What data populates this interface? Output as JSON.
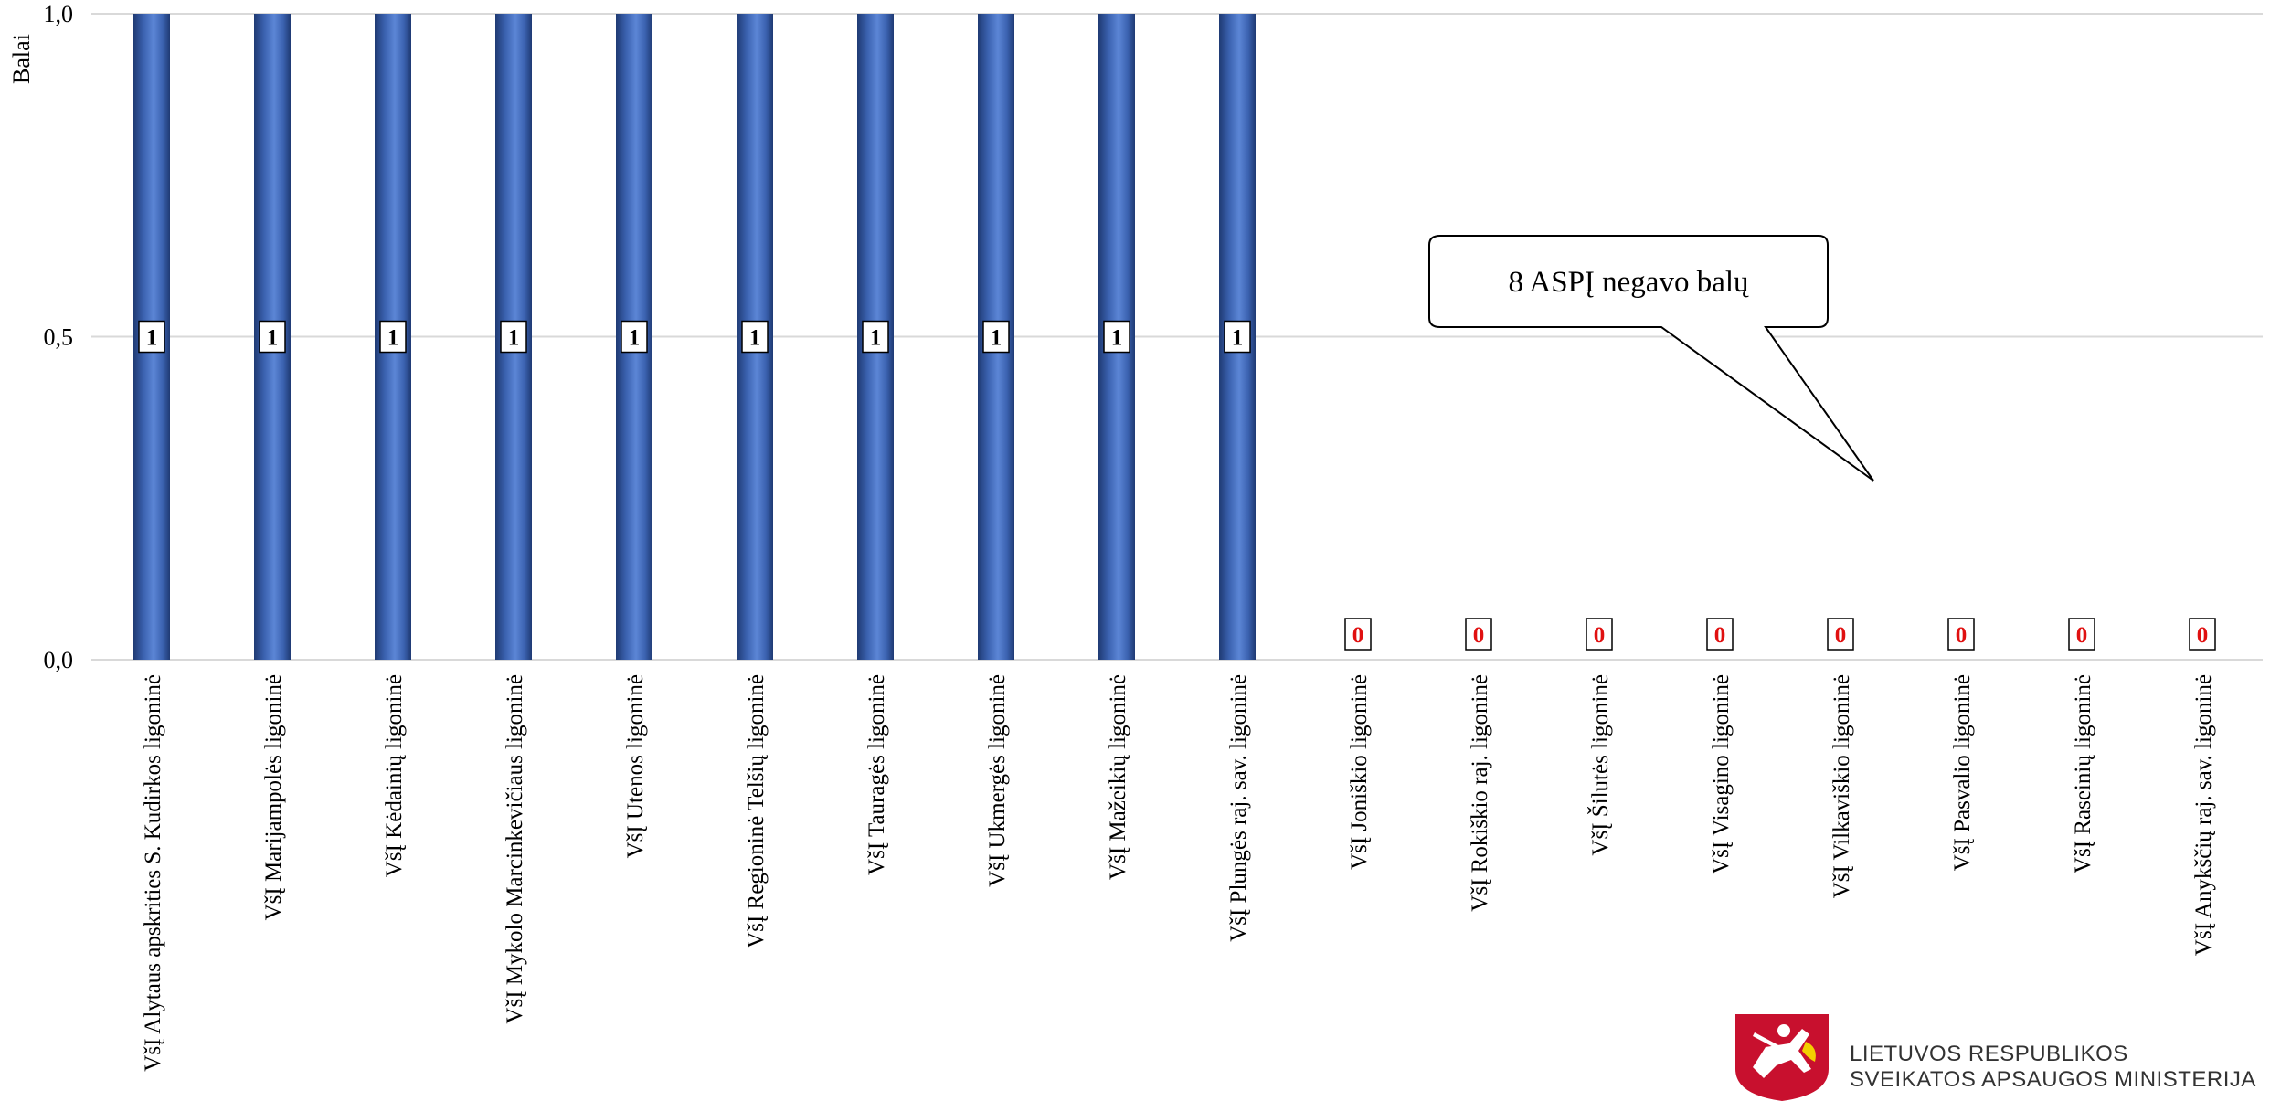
{
  "chart_data": {
    "type": "bar",
    "title": "",
    "xlabel": "",
    "ylabel": "Balai",
    "ylim": [
      0,
      1
    ],
    "yticks": [
      "0,0",
      "0,5",
      "1,0"
    ],
    "grid": true,
    "categories": [
      "VšĮ Alytaus apskrities S. Kudirkos ligoninė",
      "VšĮ Marijampolės ligoninė",
      "VšĮ Kėdainių ligoninė",
      "VšĮ Mykolo Marcinkevičiaus ligoninė",
      "VšĮ Utenos ligoninė",
      "VšĮ Regioninė Telšių ligoninė",
      "VšĮ Tauragės ligoninė",
      "VšĮ Ukmergės ligoninė",
      "VšĮ Mažeikių ligoninė",
      "VšĮ Plungės raj. sav. ligoninė",
      "VšĮ Joniškio ligoninė",
      "VšĮ Rokiškio raj. ligoninė",
      "VšĮ Šilutės ligoninė",
      "VšĮ Visagino ligoninė",
      "VšĮ Vilkaviškio ligoninė",
      "VšĮ Pasvalio ligoninė",
      "VšĮ Raseinių ligoninė",
      "VšĮ Anykščių raj. sav. ligoninė"
    ],
    "values": [
      1,
      1,
      1,
      1,
      1,
      1,
      1,
      1,
      1,
      1,
      0,
      0,
      0,
      0,
      0,
      0,
      0,
      0
    ],
    "data_labels": [
      "1",
      "1",
      "1",
      "1",
      "1",
      "1",
      "1",
      "1",
      "1",
      "1",
      "0",
      "0",
      "0",
      "0",
      "0",
      "0",
      "0",
      "0"
    ],
    "annotations": [
      {
        "text": "8 ASPĮ negavo balų"
      }
    ],
    "colors": {
      "bar": "#3b62b0",
      "bar_dark": "#1f3a73",
      "bar_light": "#5c86d6",
      "label_positive": "#000000",
      "label_zero": "#e01010",
      "grid": "#d9d9d9"
    }
  },
  "logo": {
    "line1": "LIETUVOS RESPUBLIKOS",
    "line2": "SVEIKATOS APSAUGOS MINISTERIJA",
    "emblem": "vytis-coat-of-arms-icon",
    "emblem_color": "#c8102e"
  }
}
